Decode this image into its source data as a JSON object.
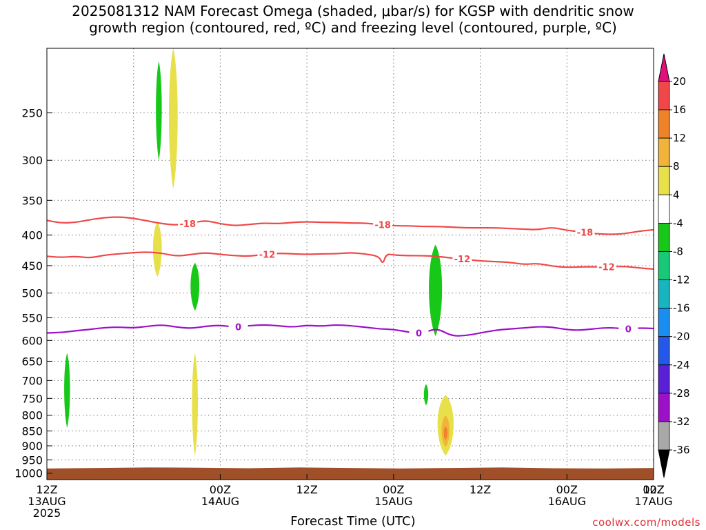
{
  "title": "2025081312 NAM Forecast Omega (shaded, μbar/s) for KGSP with dendritic snow\ngrowth region (contoured, red, ºC) and freezing level (contoured, purple, ºC)",
  "credit": "coolwx.com/models",
  "chart_data": {
    "type": "heatmap",
    "title": "2025081312 NAM Forecast Omega (shaded, μbar/s) for KGSP with dendritic snow growth region (contoured, red, ºC) and freezing level (contoured, purple, ºC)",
    "xlabel": "Forecast Time (UTC)",
    "ylabel": "",
    "x_ticks": [
      {
        "hour": 0,
        "l1": "12Z",
        "l2": "13AUG",
        "l3": "2025"
      },
      {
        "hour": 12,
        "l1": "",
        "l2": "",
        "l3": ""
      },
      {
        "hour": 24,
        "l1": "00Z",
        "l2": "14AUG",
        "l3": ""
      },
      {
        "hour": 36,
        "l1": "12Z",
        "l2": "",
        "l3": ""
      },
      {
        "hour": 48,
        "l1": "00Z",
        "l2": "15AUG",
        "l3": ""
      },
      {
        "hour": 60,
        "l1": "12Z",
        "l2": "",
        "l3": ""
      },
      {
        "hour": 72,
        "l1": "00Z",
        "l2": "16AUG",
        "l3": ""
      },
      {
        "hour": 84,
        "l1": "12Z",
        "l2": "",
        "l3": ""
      },
      {
        "hour": 96,
        "l1": "00Z",
        "l2": "17AUG",
        "l3": ""
      }
    ],
    "xlim": [
      0,
      84
    ],
    "y_ticks": [
      250,
      300,
      350,
      400,
      450,
      500,
      550,
      600,
      650,
      700,
      750,
      800,
      850,
      900,
      950,
      1000
    ],
    "ylim": [
      1025,
      195
    ],
    "y_scale": "log-pressure (hPa)",
    "grid": true,
    "colorbar": {
      "labels": [
        "20",
        "16",
        "12",
        "8",
        "4",
        "-4",
        "-8",
        "-12",
        "-16",
        "-20",
        "-24",
        "-28",
        "-32",
        "-36"
      ],
      "colors": [
        "#f23aa0",
        "#f04848",
        "#f0822a",
        "#f0b43a",
        "#e8e04a",
        "#ffffff",
        "#18c818",
        "#18c878",
        "#18b4c0",
        "#1a8ef0",
        "#2458e8",
        "#5a20d8",
        "#9c10c8",
        "#a8a8a8"
      ],
      "top_arrow_color": "#e0107a",
      "bottom_arrow_color": "#000000"
    },
    "omega_areas": [
      {
        "hour": 15.5,
        "p_top": 205,
        "p_bottom": 300,
        "half_width_h": 0.4,
        "color": "#18c818"
      },
      {
        "hour": 17.5,
        "p_top": 195,
        "p_bottom": 335,
        "half_width_h": 0.6,
        "color": "#e8e04a"
      },
      {
        "hour": 15.3,
        "p_top": 380,
        "p_bottom": 470,
        "half_width_h": 0.6,
        "color": "#e8e04a"
      },
      {
        "hour": 20.5,
        "p_top": 445,
        "p_bottom": 535,
        "half_width_h": 0.6,
        "color": "#18c818"
      },
      {
        "hour": 2.8,
        "p_top": 630,
        "p_bottom": 840,
        "half_width_h": 0.4,
        "color": "#18c818"
      },
      {
        "hour": 20.5,
        "p_top": 630,
        "p_bottom": 935,
        "half_width_h": 0.4,
        "color": "#e8e04a"
      },
      {
        "hour": 52.5,
        "p_top": 710,
        "p_bottom": 770,
        "half_width_h": 0.3,
        "color": "#18c818"
      },
      {
        "hour": 53.8,
        "p_top": 415,
        "p_bottom": 590,
        "half_width_h": 0.9,
        "color": "#18c818"
      },
      {
        "hour": 55.2,
        "p_top": 740,
        "p_bottom": 935,
        "half_width_h": 1.1,
        "color": "#e8e04a"
      },
      {
        "hour": 55.2,
        "p_top": 800,
        "p_bottom": 905,
        "half_width_h": 0.55,
        "color": "#f0b43a"
      },
      {
        "hour": 55.2,
        "p_top": 835,
        "p_bottom": 880,
        "half_width_h": 0.25,
        "color": "#f0822a"
      }
    ],
    "contours": [
      {
        "label": "-18",
        "color": "#f04848",
        "label_hours": [
          19.5,
          46.5,
          74.5
        ],
        "points": [
          [
            0,
            378
          ],
          [
            2,
            382
          ],
          [
            4,
            381
          ],
          [
            6,
            377
          ],
          [
            8,
            374
          ],
          [
            10,
            373
          ],
          [
            12,
            375
          ],
          [
            14,
            379
          ],
          [
            16,
            383
          ],
          [
            18,
            385
          ],
          [
            20,
            382
          ],
          [
            22,
            378
          ],
          [
            24,
            383
          ],
          [
            26,
            386
          ],
          [
            28,
            384
          ],
          [
            30,
            382
          ],
          [
            32,
            383
          ],
          [
            34,
            381
          ],
          [
            36,
            380
          ],
          [
            38,
            381
          ],
          [
            40,
            381
          ],
          [
            42,
            382
          ],
          [
            44,
            382
          ],
          [
            46,
            384
          ],
          [
            48,
            386
          ],
          [
            50,
            386
          ],
          [
            52,
            387
          ],
          [
            54,
            387
          ],
          [
            56,
            388
          ],
          [
            58,
            389
          ],
          [
            60,
            389
          ],
          [
            62,
            389
          ],
          [
            64,
            390
          ],
          [
            66,
            391
          ],
          [
            68,
            392
          ],
          [
            70,
            388
          ],
          [
            72,
            393
          ],
          [
            74,
            395
          ],
          [
            76,
            398
          ],
          [
            78,
            399
          ],
          [
            80,
            398
          ],
          [
            82,
            394
          ],
          [
            84,
            392
          ]
        ]
      },
      {
        "label": "-12",
        "color": "#f04848",
        "label_hours": [
          30.5,
          57.5,
          77.5
        ],
        "points": [
          [
            0,
            434
          ],
          [
            2,
            436
          ],
          [
            4,
            434
          ],
          [
            6,
            437
          ],
          [
            8,
            432
          ],
          [
            10,
            430
          ],
          [
            12,
            428
          ],
          [
            14,
            427
          ],
          [
            16,
            429
          ],
          [
            18,
            434
          ],
          [
            20,
            431
          ],
          [
            22,
            428
          ],
          [
            24,
            431
          ],
          [
            26,
            433
          ],
          [
            28,
            434
          ],
          [
            30,
            431
          ],
          [
            32,
            429
          ],
          [
            34,
            430
          ],
          [
            36,
            431
          ],
          [
            38,
            430
          ],
          [
            40,
            430
          ],
          [
            42,
            428
          ],
          [
            44,
            430
          ],
          [
            46,
            434
          ],
          [
            46.5,
            448
          ],
          [
            47,
            430
          ],
          [
            48,
            432
          ],
          [
            50,
            433
          ],
          [
            52,
            433
          ],
          [
            54,
            434
          ],
          [
            56,
            437
          ],
          [
            58,
            439
          ],
          [
            60,
            442
          ],
          [
            62,
            443
          ],
          [
            64,
            444
          ],
          [
            66,
            448
          ],
          [
            68,
            446
          ],
          [
            70,
            451
          ],
          [
            72,
            453
          ],
          [
            74,
            452
          ],
          [
            76,
            452
          ],
          [
            78,
            452
          ],
          [
            80,
            451
          ],
          [
            82,
            454
          ],
          [
            84,
            456
          ]
        ]
      },
      {
        "label": "0",
        "color": "#9c10c8",
        "label_hours": [
          26.5,
          51.5,
          80.5
        ],
        "points": [
          [
            0,
            583
          ],
          [
            2,
            582
          ],
          [
            4,
            578
          ],
          [
            6,
            575
          ],
          [
            8,
            571
          ],
          [
            10,
            570
          ],
          [
            12,
            572
          ],
          [
            14,
            568
          ],
          [
            16,
            565
          ],
          [
            18,
            570
          ],
          [
            20,
            573
          ],
          [
            22,
            568
          ],
          [
            24,
            566
          ],
          [
            26,
            570
          ],
          [
            28,
            567
          ],
          [
            30,
            565
          ],
          [
            32,
            567
          ],
          [
            34,
            570
          ],
          [
            36,
            566
          ],
          [
            38,
            568
          ],
          [
            40,
            565
          ],
          [
            42,
            567
          ],
          [
            44,
            570
          ],
          [
            46,
            574
          ],
          [
            48,
            575
          ],
          [
            50,
            581
          ],
          [
            52,
            584
          ],
          [
            54,
            572
          ],
          [
            56,
            590
          ],
          [
            58,
            589
          ],
          [
            60,
            583
          ],
          [
            62,
            577
          ],
          [
            64,
            574
          ],
          [
            66,
            572
          ],
          [
            68,
            569
          ],
          [
            70,
            570
          ],
          [
            72,
            576
          ],
          [
            74,
            577
          ],
          [
            76,
            573
          ],
          [
            78,
            571
          ],
          [
            80,
            574
          ],
          [
            82,
            572
          ],
          [
            84,
            573
          ]
        ]
      }
    ],
    "ground": {
      "p_top_wavy": [
        982,
        980,
        978,
        979,
        981,
        978,
        980,
        982,
        980,
        978,
        981,
        982,
        980
      ],
      "color": "#a05028"
    }
  }
}
